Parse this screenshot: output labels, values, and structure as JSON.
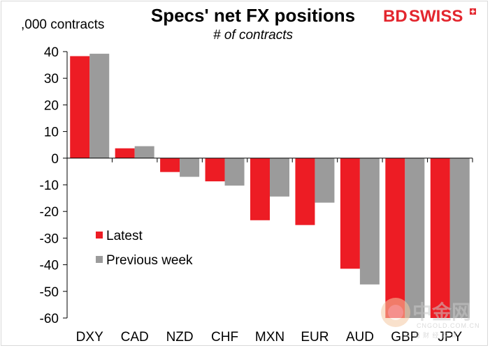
{
  "colors": {
    "latest": "#ed1c24",
    "previous": "#9b9b9b",
    "brand_red": "#e3262e"
  },
  "brand": {
    "part1": "BD",
    "part2": "SWISS",
    "watermark_cn": "中金网",
    "watermark_url": "CNGOLD.COM.CN",
    "watermark_tagline": "中 国 财 经 媒 体"
  },
  "chart_data": {
    "type": "bar",
    "title": "Specs' net FX positions",
    "subtitle": "# of contracts",
    "ylabel": ",000 contracts",
    "ylim": [
      -60,
      40
    ],
    "yticks": [
      40,
      30,
      20,
      10,
      0,
      -10,
      -20,
      -30,
      -40,
      -50,
      -60
    ],
    "grid": false,
    "legend_position": "lower-left",
    "categories": [
      "DXY",
      "CAD",
      "NZD",
      "CHF",
      "MXN",
      "EUR",
      "AUD",
      "GBP",
      "JPY"
    ],
    "series": [
      {
        "name": "Latest",
        "values": [
          38.3,
          3.7,
          -5.2,
          -8.7,
          -23.3,
          -25.1,
          -41.5,
          -60,
          -60
        ]
      },
      {
        "name": "Previous week",
        "values": [
          39.2,
          4.5,
          -7.0,
          -10.3,
          -14.4,
          -16.7,
          -47.4,
          -60,
          -60
        ]
      }
    ]
  }
}
